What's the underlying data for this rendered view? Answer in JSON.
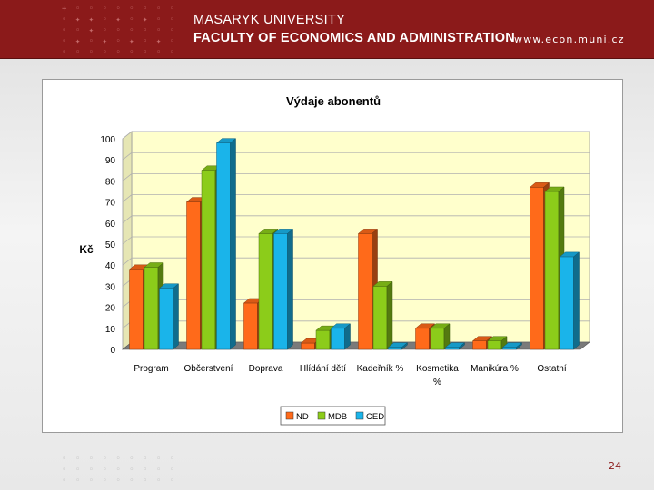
{
  "header": {
    "university": "MASARYK UNIVERSITY",
    "faculty": "FACULTY OF ECONOMICS AND ADMINISTRATION",
    "url": "www.econ.muni.cz"
  },
  "page_number": "24",
  "colors": {
    "brand": "#8b1a1a",
    "nd": "#ff6a1a",
    "mdb": "#8ccc1a",
    "ced": "#1ab4ea"
  },
  "chart_data": {
    "type": "bar",
    "title": "Výdaje abonentů",
    "ylabel": "Kč",
    "xlabel": "",
    "ylim": [
      0,
      100
    ],
    "yticks": [
      0,
      10,
      20,
      30,
      40,
      50,
      60,
      70,
      80,
      90,
      100
    ],
    "categories": [
      "Program",
      "Občerstvení",
      "Doprava",
      "Hlídání dětí",
      "Kadeřník %",
      "Kosmetika %",
      "Manikúra %",
      "Ostatní"
    ],
    "series": [
      {
        "name": "ND",
        "color": "#ff6a1a",
        "values": [
          38,
          70,
          22,
          3,
          55,
          10,
          4,
          77
        ]
      },
      {
        "name": "MDB",
        "color": "#8ccc1a",
        "values": [
          39,
          85,
          55,
          9,
          30,
          10,
          4,
          75
        ]
      },
      {
        "name": "CED",
        "color": "#1ab4ea",
        "values": [
          29,
          98,
          55,
          10,
          1,
          1,
          1,
          44
        ]
      }
    ],
    "grid": true,
    "legend": "bottom"
  }
}
